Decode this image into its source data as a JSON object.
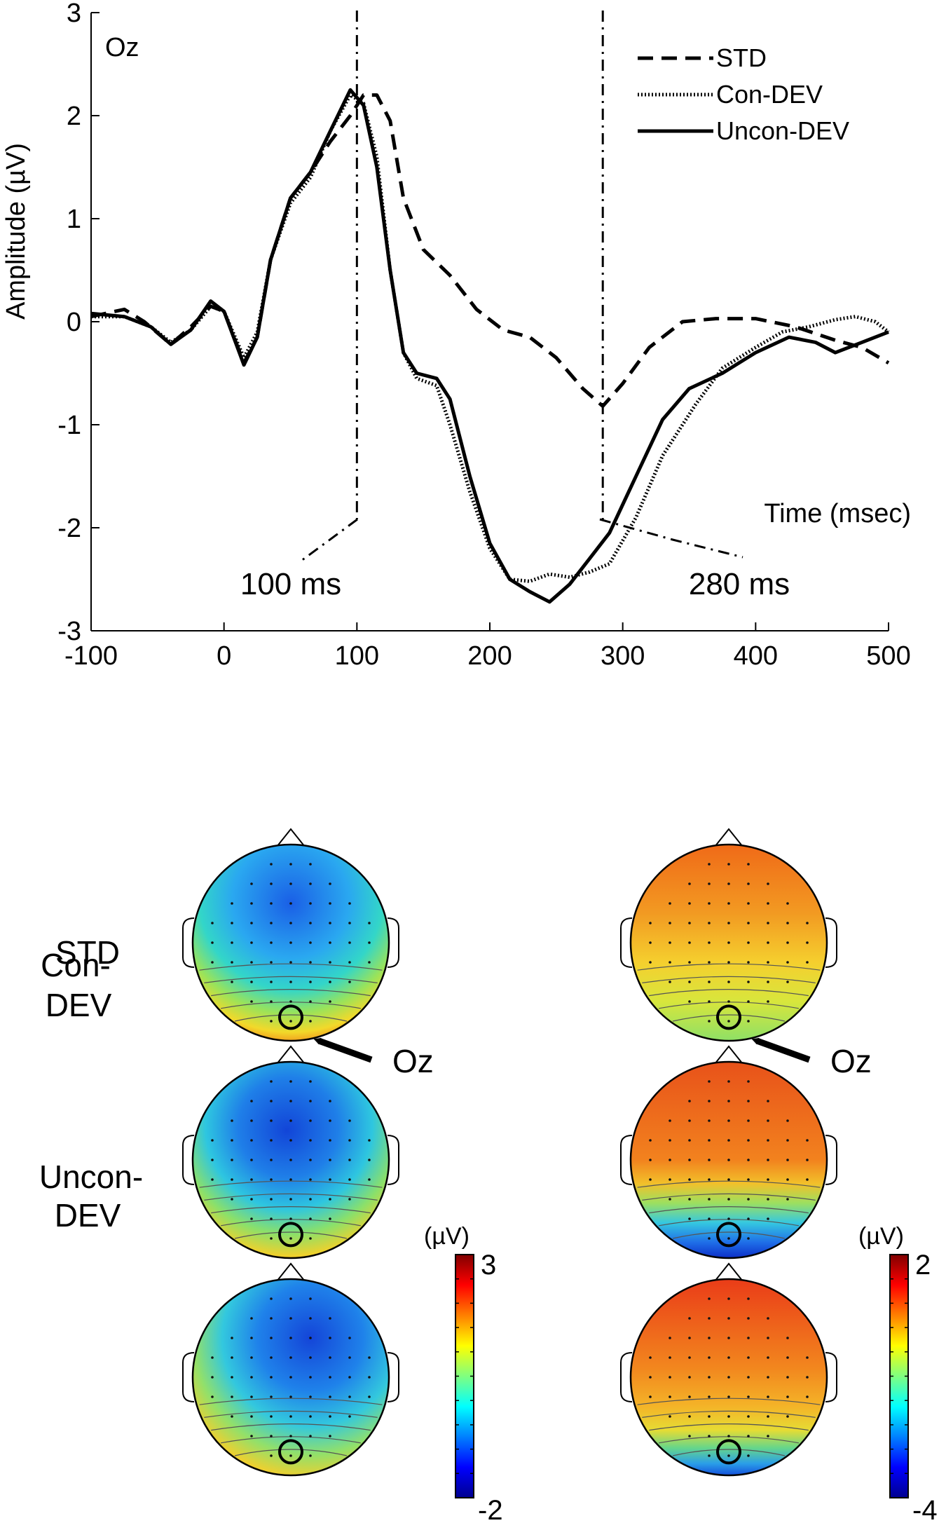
{
  "chart_data": {
    "type": "line",
    "channel_label": "Oz",
    "xlabel": "Time (msec)",
    "ylabel": "Amplitude (µV)",
    "xlim": [
      -100,
      500
    ],
    "ylim": [
      -3,
      3
    ],
    "xticks": [
      -100,
      0,
      100,
      200,
      300,
      400,
      500
    ],
    "yticks": [
      -3,
      -2,
      -1,
      0,
      1,
      2,
      3
    ],
    "marker_times": [
      100,
      285
    ],
    "series": [
      {
        "name": "STD",
        "style": "dashed",
        "points": [
          [
            -100,
            0.05
          ],
          [
            -75,
            0.12
          ],
          [
            -60,
            0.0
          ],
          [
            -40,
            -0.22
          ],
          [
            -25,
            -0.05
          ],
          [
            -10,
            0.15
          ],
          [
            0,
            0.1
          ],
          [
            15,
            -0.4
          ],
          [
            25,
            -0.15
          ],
          [
            35,
            0.6
          ],
          [
            50,
            1.2
          ],
          [
            65,
            1.45
          ],
          [
            80,
            1.75
          ],
          [
            95,
            2.0
          ],
          [
            105,
            2.2
          ],
          [
            115,
            2.2
          ],
          [
            125,
            1.95
          ],
          [
            135,
            1.2
          ],
          [
            150,
            0.7
          ],
          [
            170,
            0.45
          ],
          [
            190,
            0.12
          ],
          [
            210,
            -0.08
          ],
          [
            230,
            -0.15
          ],
          [
            250,
            -0.35
          ],
          [
            270,
            -0.65
          ],
          [
            285,
            -0.82
          ],
          [
            300,
            -0.6
          ],
          [
            320,
            -0.25
          ],
          [
            345,
            0.0
          ],
          [
            370,
            0.03
          ],
          [
            400,
            0.03
          ],
          [
            430,
            -0.05
          ],
          [
            460,
            -0.18
          ],
          [
            480,
            -0.25
          ],
          [
            500,
            -0.4
          ]
        ]
      },
      {
        "name": "Con-DEV",
        "style": "dotted",
        "points": [
          [
            -100,
            0.05
          ],
          [
            -75,
            0.05
          ],
          [
            -55,
            -0.05
          ],
          [
            -40,
            -0.2
          ],
          [
            -25,
            -0.08
          ],
          [
            -10,
            0.15
          ],
          [
            0,
            0.1
          ],
          [
            15,
            -0.35
          ],
          [
            25,
            -0.1
          ],
          [
            35,
            0.6
          ],
          [
            50,
            1.15
          ],
          [
            65,
            1.4
          ],
          [
            80,
            1.85
          ],
          [
            95,
            2.2
          ],
          [
            105,
            2.12
          ],
          [
            115,
            1.6
          ],
          [
            125,
            0.5
          ],
          [
            135,
            -0.3
          ],
          [
            145,
            -0.55
          ],
          [
            160,
            -0.62
          ],
          [
            170,
            -1.0
          ],
          [
            185,
            -1.65
          ],
          [
            200,
            -2.2
          ],
          [
            215,
            -2.5
          ],
          [
            230,
            -2.52
          ],
          [
            245,
            -2.45
          ],
          [
            260,
            -2.48
          ],
          [
            275,
            -2.43
          ],
          [
            290,
            -2.35
          ],
          [
            310,
            -1.9
          ],
          [
            330,
            -1.3
          ],
          [
            355,
            -0.8
          ],
          [
            375,
            -0.45
          ],
          [
            400,
            -0.25
          ],
          [
            420,
            -0.1
          ],
          [
            440,
            -0.05
          ],
          [
            460,
            0.02
          ],
          [
            475,
            0.05
          ],
          [
            490,
            0.0
          ],
          [
            500,
            -0.1
          ]
        ]
      },
      {
        "name": "Uncon-DEV",
        "style": "solid",
        "points": [
          [
            -100,
            0.08
          ],
          [
            -75,
            0.05
          ],
          [
            -55,
            -0.05
          ],
          [
            -40,
            -0.22
          ],
          [
            -25,
            -0.08
          ],
          [
            -10,
            0.2
          ],
          [
            0,
            0.1
          ],
          [
            15,
            -0.42
          ],
          [
            25,
            -0.15
          ],
          [
            35,
            0.6
          ],
          [
            50,
            1.2
          ],
          [
            65,
            1.45
          ],
          [
            80,
            1.85
          ],
          [
            95,
            2.25
          ],
          [
            105,
            2.1
          ],
          [
            115,
            1.5
          ],
          [
            125,
            0.5
          ],
          [
            135,
            -0.3
          ],
          [
            145,
            -0.5
          ],
          [
            160,
            -0.55
          ],
          [
            170,
            -0.75
          ],
          [
            185,
            -1.5
          ],
          [
            200,
            -2.15
          ],
          [
            215,
            -2.5
          ],
          [
            230,
            -2.62
          ],
          [
            245,
            -2.72
          ],
          [
            260,
            -2.55
          ],
          [
            275,
            -2.3
          ],
          [
            290,
            -2.05
          ],
          [
            310,
            -1.5
          ],
          [
            330,
            -0.95
          ],
          [
            350,
            -0.65
          ],
          [
            375,
            -0.5
          ],
          [
            400,
            -0.3
          ],
          [
            425,
            -0.15
          ],
          [
            445,
            -0.2
          ],
          [
            460,
            -0.3
          ],
          [
            480,
            -0.2
          ],
          [
            500,
            -0.1
          ]
        ]
      }
    ]
  },
  "topomaps": {
    "left_time_label": "100 ms",
    "right_time_label": "280 ms",
    "row_labels": [
      [
        "STD"
      ],
      [
        "Con-",
        "DEV"
      ],
      [
        "Uncon-",
        "DEV"
      ]
    ],
    "electrode_label": "Oz",
    "left_colorbar": {
      "unit": "(µV)",
      "max": "3",
      "min": "-2"
    },
    "right_colorbar": {
      "unit": "(µV)",
      "max": "2",
      "min": "-4"
    }
  }
}
